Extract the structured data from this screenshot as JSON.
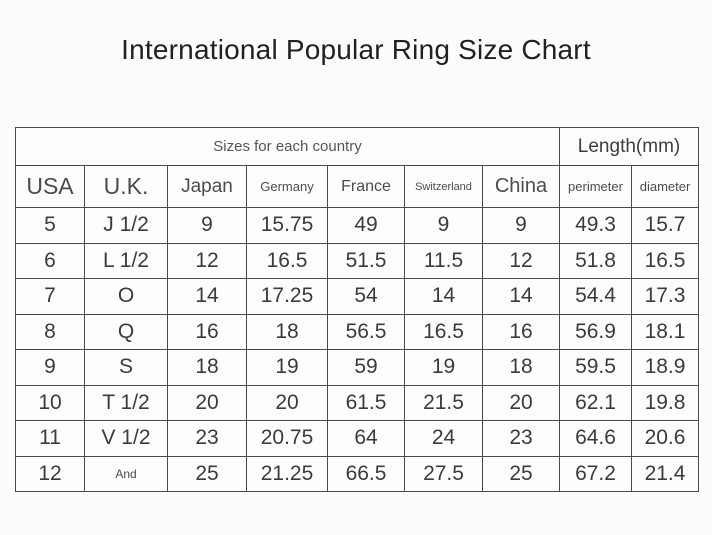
{
  "page_title": "International Popular Ring Size Chart",
  "chart_data": {
    "type": "table",
    "title": "International Popular Ring Size Chart",
    "group_headers": [
      {
        "label": "Sizes for each country",
        "colspan": 7
      },
      {
        "label": "Length(mm)",
        "colspan": 2
      }
    ],
    "columns": [
      "USA",
      "U.K.",
      "Japan",
      "Germany",
      "France",
      "Switzerland",
      "China",
      "perimeter",
      "diameter"
    ],
    "rows": [
      [
        "5",
        "J 1/2",
        "9",
        "15.75",
        "49",
        "9",
        "9",
        "49.3",
        "15.7"
      ],
      [
        "6",
        "L 1/2",
        "12",
        "16.5",
        "51.5",
        "11.5",
        "12",
        "51.8",
        "16.5"
      ],
      [
        "7",
        "O",
        "14",
        "17.25",
        "54",
        "14",
        "14",
        "54.4",
        "17.3"
      ],
      [
        "8",
        "Q",
        "16",
        "18",
        "56.5",
        "16.5",
        "16",
        "56.9",
        "18.1"
      ],
      [
        "9",
        "S",
        "18",
        "19",
        "59",
        "19",
        "18",
        "59.5",
        "18.9"
      ],
      [
        "10",
        "T 1/2",
        "20",
        "20",
        "61.5",
        "21.5",
        "20",
        "62.1",
        "19.8"
      ],
      [
        "11",
        "V 1/2",
        "23",
        "20.75",
        "64",
        "24",
        "23",
        "64.6",
        "20.6"
      ],
      [
        "12",
        "And",
        "25",
        "21.25",
        "66.5",
        "27.5",
        "25",
        "67.2",
        "21.4"
      ]
    ]
  },
  "colors": {
    "background": "#fcfcfc",
    "border": "#4a4a4a",
    "title_text": "#212121",
    "header_text": "#4c4c4c",
    "cell_text": "#3b3b3b"
  }
}
